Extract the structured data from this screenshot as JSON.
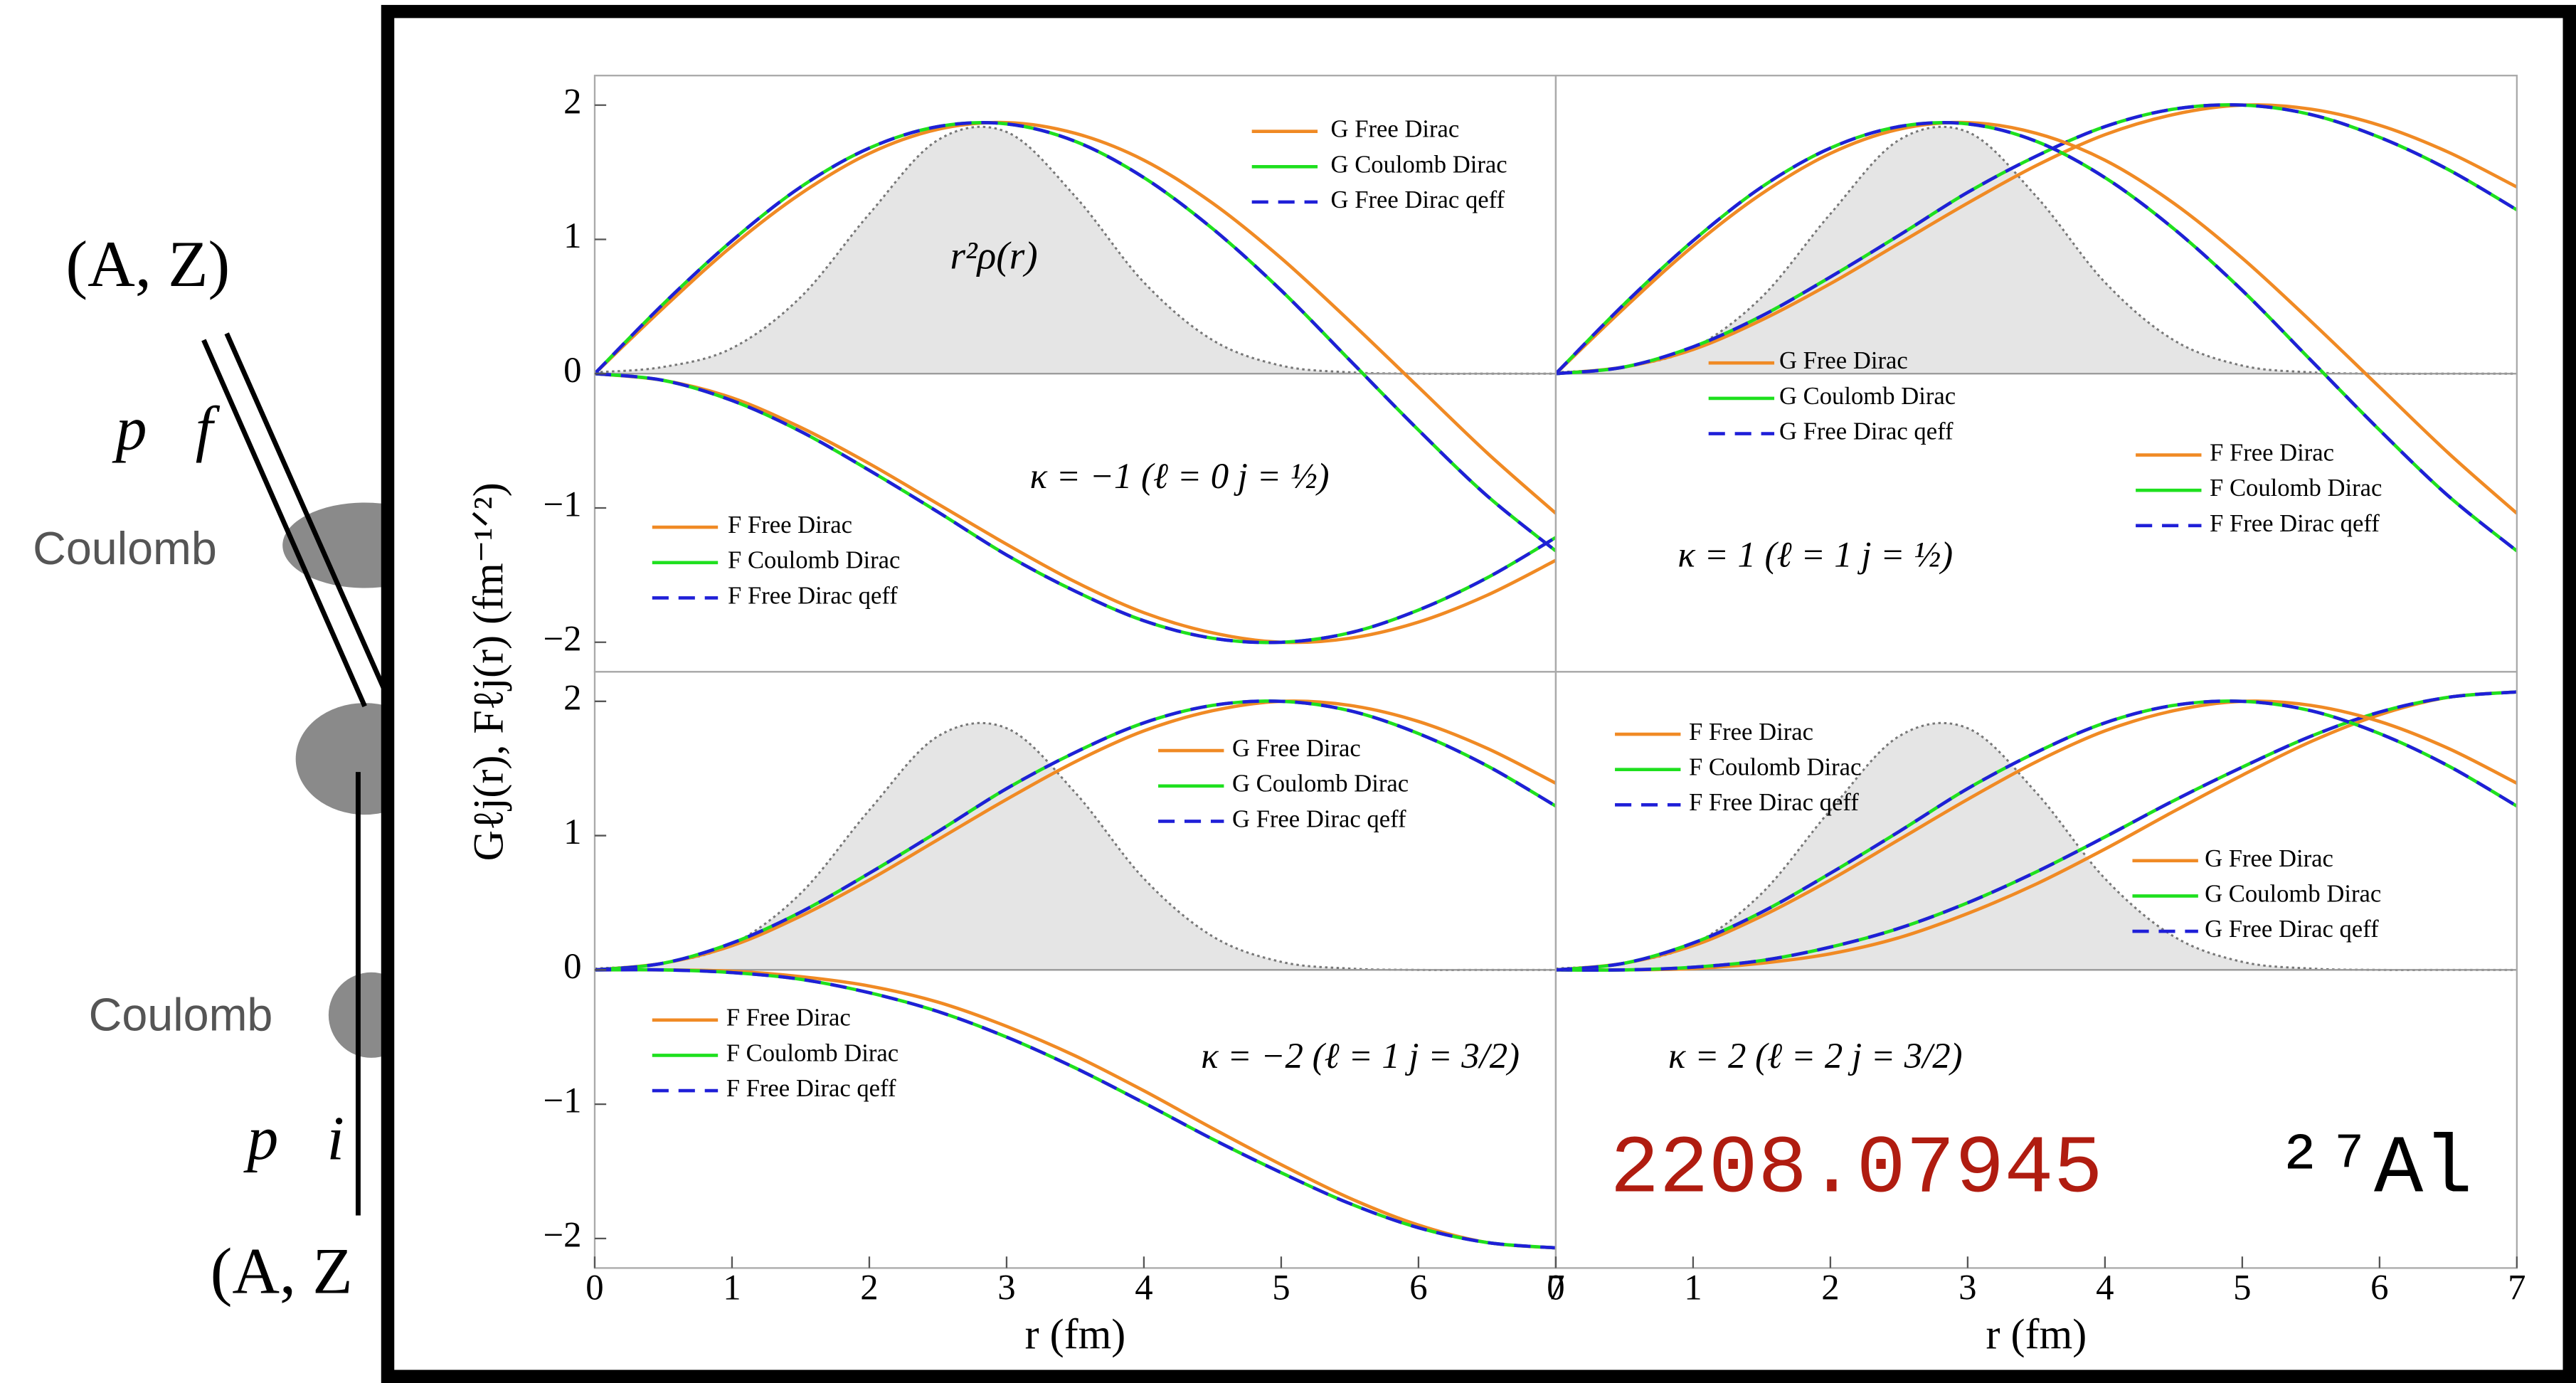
{
  "diagram": {
    "labels": [
      "(A, Z)",
      "p⃗f",
      "Coulomb",
      "Coulomb",
      "p⃗i",
      "(A, Z"
    ]
  },
  "y_label": "Gℓj(r), Fℓj(r) (fm⁻¹ᐟ²)",
  "arxiv_id": "2208.07945",
  "nucleus": "²⁷Al",
  "chart_data": [
    {
      "type": "line",
      "annotation": "κ = −1 (ℓ = 0 j = ½)",
      "density_label": "r²ρ(r)",
      "x": [
        0,
        0.5,
        1,
        1.5,
        2,
        2.5,
        3,
        3.5,
        4,
        4.5,
        5,
        5.5,
        6,
        6.5,
        7
      ],
      "xlim": [
        0,
        7
      ],
      "ylim": [
        -2.22,
        2.22
      ],
      "yticks": [
        {
          "value": -2,
          "label": "−2"
        },
        {
          "value": -1,
          "label": "−1"
        },
        0,
        1,
        2
      ],
      "density": [
        0.01,
        0.05,
        0.19,
        0.57,
        1.19,
        1.74,
        1.8,
        1.32,
        0.68,
        0.25,
        0.06,
        0.01,
        0,
        0,
        0
      ],
      "series": [
        {
          "name": "G Free Dirac",
          "color": "#f08a24",
          "dashed": false,
          "values": [
            0,
            0.49,
            0.95,
            1.34,
            1.64,
            1.82,
            1.87,
            1.79,
            1.59,
            1.27,
            0.86,
            0.39,
            -0.1,
            -0.59,
            -1.04
          ]
        },
        {
          "name": "G Coulomb Dirac",
          "color": "#1ee01e",
          "dashed": false,
          "values": [
            0,
            0.52,
            0.99,
            1.39,
            1.68,
            1.84,
            1.86,
            1.73,
            1.46,
            1.08,
            0.62,
            0.1,
            -0.42,
            -0.91,
            -1.32
          ]
        },
        {
          "name": "G Free Dirac qeff",
          "color": "#1f1fd8",
          "dashed": true,
          "values": [
            0,
            0.52,
            0.99,
            1.39,
            1.68,
            1.84,
            1.86,
            1.73,
            1.46,
            1.08,
            0.62,
            0.1,
            -0.42,
            -0.91,
            -1.32
          ]
        },
        {
          "name": "F Free Dirac",
          "color": "#f08a24",
          "dashed": false,
          "values": [
            0,
            -0.05,
            -0.18,
            -0.4,
            -0.67,
            -0.97,
            -1.27,
            -1.55,
            -1.78,
            -1.93,
            -2.0,
            -1.97,
            -1.85,
            -1.65,
            -1.39
          ]
        },
        {
          "name": "F Coulomb Dirac",
          "color": "#1ee01e",
          "dashed": false,
          "values": [
            0,
            -0.05,
            -0.2,
            -0.43,
            -0.72,
            -1.03,
            -1.35,
            -1.62,
            -1.84,
            -1.97,
            -2.0,
            -1.93,
            -1.76,
            -1.52,
            -1.22
          ]
        },
        {
          "name": "F Free Dirac qeff",
          "color": "#1f1fd8",
          "dashed": true,
          "values": [
            0,
            -0.05,
            -0.2,
            -0.43,
            -0.72,
            -1.03,
            -1.35,
            -1.62,
            -1.84,
            -1.97,
            -2.0,
            -1.93,
            -1.76,
            -1.52,
            -1.22
          ]
        }
      ]
    },
    {
      "type": "line",
      "annotation": "κ = 1 (ℓ = 1 j = ½)",
      "x": [
        0,
        0.5,
        1,
        1.5,
        2,
        2.5,
        3,
        3.5,
        4,
        4.5,
        5,
        5.5,
        6,
        6.5,
        7
      ],
      "xlim": [
        0,
        7
      ],
      "ylim": [
        -2.22,
        2.22
      ],
      "density": [
        0.01,
        0.05,
        0.19,
        0.57,
        1.19,
        1.74,
        1.8,
        1.32,
        0.68,
        0.25,
        0.06,
        0.01,
        0,
        0,
        0
      ],
      "series": [
        {
          "name": "G Free Dirac",
          "color": "#f08a24",
          "dashed": false,
          "values": [
            0,
            0.05,
            0.18,
            0.4,
            0.67,
            0.97,
            1.27,
            1.55,
            1.78,
            1.93,
            2.0,
            1.97,
            1.85,
            1.65,
            1.39
          ]
        },
        {
          "name": "G Coulomb Dirac",
          "color": "#1ee01e",
          "dashed": false,
          "values": [
            0,
            0.05,
            0.2,
            0.43,
            0.72,
            1.03,
            1.35,
            1.62,
            1.84,
            1.97,
            2.0,
            1.93,
            1.76,
            1.52,
            1.22
          ]
        },
        {
          "name": "G Free Dirac qeff",
          "color": "#1f1fd8",
          "dashed": true,
          "values": [
            0,
            0.05,
            0.2,
            0.43,
            0.72,
            1.03,
            1.35,
            1.62,
            1.84,
            1.97,
            2.0,
            1.93,
            1.76,
            1.52,
            1.22
          ]
        },
        {
          "name": "F Free Dirac",
          "color": "#f08a24",
          "dashed": false,
          "values": [
            0,
            0.49,
            0.95,
            1.34,
            1.64,
            1.82,
            1.87,
            1.79,
            1.59,
            1.27,
            0.86,
            0.39,
            -0.1,
            -0.59,
            -1.04
          ]
        },
        {
          "name": "F Coulomb Dirac",
          "color": "#1ee01e",
          "dashed": false,
          "values": [
            0,
            0.52,
            0.99,
            1.39,
            1.68,
            1.84,
            1.86,
            1.73,
            1.46,
            1.08,
            0.62,
            0.1,
            -0.42,
            -0.91,
            -1.32
          ]
        },
        {
          "name": "F Free Dirac qeff",
          "color": "#1f1fd8",
          "dashed": true,
          "values": [
            0,
            0.52,
            0.99,
            1.39,
            1.68,
            1.84,
            1.86,
            1.73,
            1.46,
            1.08,
            0.62,
            0.1,
            -0.42,
            -0.91,
            -1.32
          ]
        }
      ]
    },
    {
      "type": "line",
      "annotation": "κ = −2 (ℓ = 1 j = 3/2)",
      "xlabel": "r (fm)",
      "x": [
        0,
        0.5,
        1,
        1.5,
        2,
        2.5,
        3,
        3.5,
        4,
        4.5,
        5,
        5.5,
        6,
        6.5,
        7
      ],
      "xlim": [
        0,
        7
      ],
      "ylim": [
        -2.22,
        2.22
      ],
      "xticks": [
        0,
        1,
        2,
        3,
        4,
        5,
        6,
        7
      ],
      "yticks": [
        {
          "value": -2,
          "label": "−2"
        },
        {
          "value": -1,
          "label": "−1"
        },
        0,
        1,
        2
      ],
      "density": [
        0.01,
        0.05,
        0.19,
        0.57,
        1.19,
        1.74,
        1.8,
        1.32,
        0.68,
        0.25,
        0.06,
        0.01,
        0,
        0,
        0
      ],
      "series": [
        {
          "name": "G Free Dirac",
          "color": "#f08a24",
          "dashed": false,
          "values": [
            0,
            0.05,
            0.18,
            0.4,
            0.67,
            0.97,
            1.27,
            1.55,
            1.78,
            1.93,
            2.0,
            1.97,
            1.85,
            1.65,
            1.39
          ]
        },
        {
          "name": "G Coulomb Dirac",
          "color": "#1ee01e",
          "dashed": false,
          "values": [
            0,
            0.05,
            0.2,
            0.43,
            0.72,
            1.03,
            1.35,
            1.62,
            1.84,
            1.97,
            2.0,
            1.93,
            1.76,
            1.52,
            1.22
          ]
        },
        {
          "name": "G Free Dirac qeff",
          "color": "#1f1fd8",
          "dashed": true,
          "values": [
            0,
            0.05,
            0.2,
            0.43,
            0.72,
            1.03,
            1.35,
            1.62,
            1.84,
            1.97,
            2.0,
            1.93,
            1.76,
            1.52,
            1.22
          ]
        },
        {
          "name": "F Free Dirac",
          "color": "#f08a24",
          "dashed": false,
          "values": [
            0,
            0,
            -0.01,
            -0.05,
            -0.12,
            -0.24,
            -0.42,
            -0.64,
            -0.9,
            -1.18,
            -1.45,
            -1.7,
            -1.9,
            -2.03,
            -2.07
          ]
        },
        {
          "name": "F Coulomb Dirac",
          "color": "#1ee01e",
          "dashed": false,
          "values": [
            0,
            0,
            -0.02,
            -0.07,
            -0.17,
            -0.31,
            -0.5,
            -0.73,
            -0.99,
            -1.26,
            -1.51,
            -1.74,
            -1.92,
            -2.03,
            -2.07
          ]
        },
        {
          "name": "F Free Dirac qeff",
          "color": "#1f1fd8",
          "dashed": true,
          "values": [
            0,
            0,
            -0.02,
            -0.07,
            -0.17,
            -0.31,
            -0.5,
            -0.73,
            -0.99,
            -1.26,
            -1.51,
            -1.74,
            -1.92,
            -2.03,
            -2.07
          ]
        }
      ]
    },
    {
      "type": "line",
      "annotation": "κ = 2 (ℓ = 2 j = 3/2)",
      "xlabel": "r (fm)",
      "x": [
        0,
        0.5,
        1,
        1.5,
        2,
        2.5,
        3,
        3.5,
        4,
        4.5,
        5,
        5.5,
        6,
        6.5,
        7
      ],
      "xlim": [
        0,
        7
      ],
      "ylim": [
        -2.22,
        2.22
      ],
      "xticks": [
        0,
        1,
        2,
        3,
        4,
        5,
        6,
        7
      ],
      "density": [
        0.01,
        0.05,
        0.19,
        0.57,
        1.19,
        1.74,
        1.8,
        1.32,
        0.68,
        0.25,
        0.06,
        0.01,
        0,
        0,
        0
      ],
      "series": [
        {
          "name": "G Free Dirac",
          "color": "#f08a24",
          "dashed": false,
          "values": [
            0,
            0,
            0.01,
            0.05,
            0.12,
            0.24,
            0.42,
            0.64,
            0.9,
            1.18,
            1.45,
            1.7,
            1.9,
            2.03,
            2.07
          ]
        },
        {
          "name": "G Coulomb Dirac",
          "color": "#1ee01e",
          "dashed": false,
          "values": [
            0,
            0,
            0.02,
            0.07,
            0.17,
            0.31,
            0.5,
            0.73,
            0.99,
            1.26,
            1.51,
            1.74,
            1.92,
            2.03,
            2.07
          ]
        },
        {
          "name": "G Free Dirac qeff",
          "color": "#1f1fd8",
          "dashed": true,
          "values": [
            0,
            0,
            0.02,
            0.07,
            0.17,
            0.31,
            0.5,
            0.73,
            0.99,
            1.26,
            1.51,
            1.74,
            1.92,
            2.03,
            2.07
          ]
        },
        {
          "name": "F Free Dirac",
          "color": "#f08a24",
          "dashed": false,
          "values": [
            0,
            0.05,
            0.18,
            0.4,
            0.67,
            0.97,
            1.27,
            1.55,
            1.78,
            1.93,
            2.0,
            1.97,
            1.85,
            1.65,
            1.39
          ]
        },
        {
          "name": "F Coulomb Dirac",
          "color": "#1ee01e",
          "dashed": false,
          "values": [
            0,
            0.05,
            0.2,
            0.43,
            0.72,
            1.03,
            1.35,
            1.62,
            1.84,
            1.97,
            2.0,
            1.93,
            1.76,
            1.52,
            1.22
          ]
        },
        {
          "name": "F Free Dirac qeff",
          "color": "#1f1fd8",
          "dashed": true,
          "values": [
            0,
            0.05,
            0.2,
            0.43,
            0.72,
            1.03,
            1.35,
            1.62,
            1.84,
            1.97,
            2.0,
            1.93,
            1.76,
            1.52,
            1.22
          ]
        }
      ]
    }
  ]
}
